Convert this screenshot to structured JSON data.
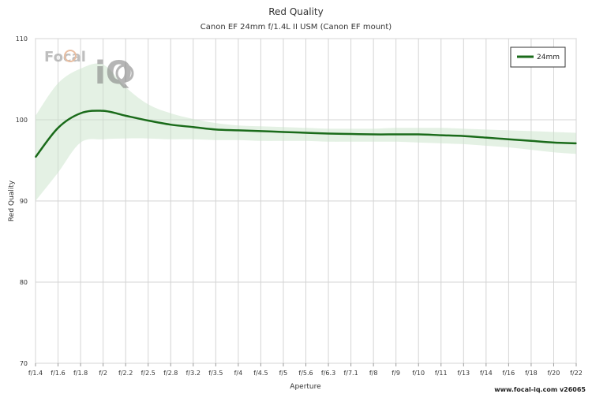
{
  "chart_data": {
    "type": "line",
    "title": "Red Quality",
    "subtitle": "Canon EF 24mm f/1.4L II USM (Canon EF mount)",
    "xlabel": "Aperture",
    "ylabel": "Red Quality",
    "ylim": [
      70,
      110
    ],
    "yticks": [
      70,
      80,
      90,
      100,
      110
    ],
    "grid": true,
    "legend_position": "top-right",
    "categories": [
      "f/1.4",
      "f/1.6",
      "f/1.8",
      "f/2",
      "f/2.2",
      "f/2.5",
      "f/2.8",
      "f/3.2",
      "f/3.5",
      "f/4",
      "f/4.5",
      "f/5",
      "f/5.6",
      "f/6.3",
      "f/7.1",
      "f/8",
      "f/9",
      "f/10",
      "f/11",
      "f/13",
      "f/14",
      "f/16",
      "f/18",
      "f/20",
      "f/22"
    ],
    "series": [
      {
        "name": "24mm",
        "color": "#1a6b1a",
        "values": [
          95.4,
          99.0,
          100.8,
          101.1,
          100.5,
          99.9,
          99.4,
          99.1,
          98.8,
          98.7,
          98.6,
          98.5,
          98.4,
          98.3,
          98.25,
          98.2,
          98.2,
          98.2,
          98.1,
          98.0,
          97.8,
          97.6,
          97.4,
          97.2,
          97.1
        ],
        "band_upper": [
          100.5,
          104.5,
          106.3,
          106.8,
          104.0,
          101.9,
          100.8,
          100.1,
          99.6,
          99.3,
          99.2,
          99.1,
          99.0,
          98.9,
          98.9,
          98.9,
          99.0,
          99.0,
          99.0,
          98.9,
          98.8,
          98.7,
          98.6,
          98.5,
          98.4
        ],
        "band_lower": [
          90.0,
          93.5,
          97.2,
          97.6,
          97.7,
          97.7,
          97.6,
          97.6,
          97.5,
          97.5,
          97.4,
          97.4,
          97.4,
          97.3,
          97.3,
          97.3,
          97.3,
          97.2,
          97.1,
          97.0,
          96.8,
          96.6,
          96.3,
          96.0,
          95.8
        ]
      }
    ]
  },
  "watermark": {
    "logo_text_1": "Focal",
    "logo_text_2": "iQ",
    "url": "www.focal-iq.com  v26065"
  }
}
